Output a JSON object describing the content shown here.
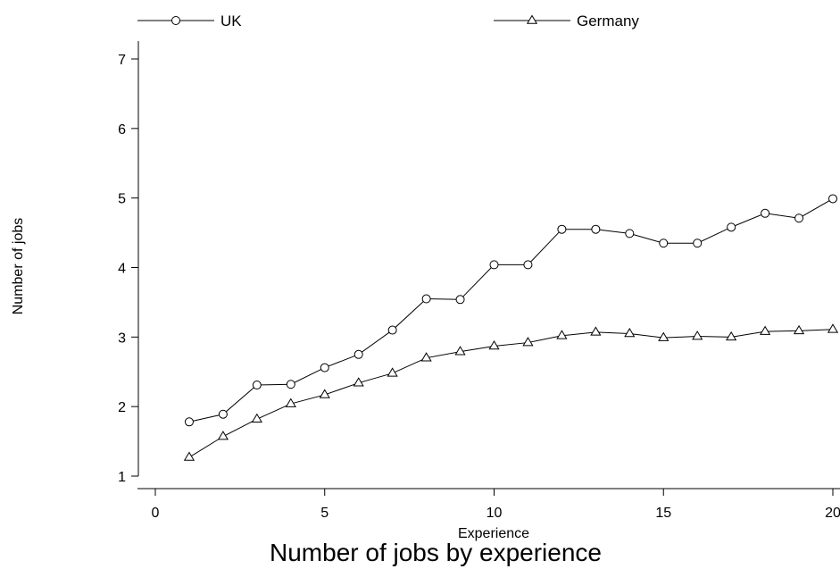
{
  "chart_data": {
    "type": "line",
    "title": "Number of jobs by experience",
    "xlabel": "Experience",
    "ylabel": "Number of jobs",
    "xlim": [
      0,
      20
    ],
    "ylim": [
      1,
      7
    ],
    "xticks": [
      0,
      5,
      10,
      15,
      20
    ],
    "yticks": [
      1,
      2,
      3,
      4,
      5,
      6,
      7
    ],
    "grid": false,
    "legend_position": "top",
    "x": [
      1,
      2,
      3,
      4,
      5,
      6,
      7,
      8,
      9,
      10,
      11,
      12,
      13,
      14,
      15,
      16,
      17,
      18,
      19,
      20
    ],
    "series": [
      {
        "name": "UK",
        "marker": "circle",
        "values": [
          1.78,
          1.89,
          2.31,
          2.32,
          2.56,
          2.75,
          3.1,
          3.55,
          3.54,
          4.04,
          4.04,
          4.55,
          4.55,
          4.49,
          4.35,
          4.35,
          4.58,
          4.78,
          4.71,
          4.99
        ]
      },
      {
        "name": "Germany",
        "marker": "triangle",
        "values": [
          1.27,
          1.57,
          1.82,
          2.04,
          2.17,
          2.34,
          2.48,
          2.7,
          2.79,
          2.87,
          2.92,
          3.02,
          3.07,
          3.05,
          2.99,
          3.01,
          3.0,
          3.08,
          3.09,
          3.11
        ]
      }
    ]
  }
}
